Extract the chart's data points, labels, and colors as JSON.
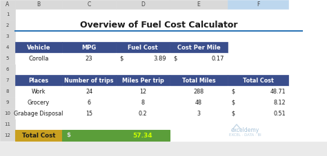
{
  "title": "Overview of Fuel Cost Calculator",
  "bg_color": "#EAEAEA",
  "white": "#FFFFFF",
  "header_blue": "#3A4E8C",
  "header_text": "#FFFFFF",
  "border_dark": "#999999",
  "border_light": "#CCCCCC",
  "col_header_bg": "#D9D9D9",
  "col_F_header_bg": "#BDD7EE",
  "table1_headers": [
    "Vehicle",
    "MPG",
    "Fuel Cost",
    "Cost Per Mile"
  ],
  "table1_data_row": [
    "Corolla",
    "23",
    "3.89",
    "0.17"
  ],
  "table2_headers": [
    "Places",
    "Number of trips",
    "Miles Per trip",
    "Total Miles",
    "Total Cost"
  ],
  "table2_data": [
    [
      "Work",
      "24",
      "12",
      "288",
      "48.71"
    ],
    [
      "Grocery",
      "6",
      "8",
      "48",
      "8.12"
    ],
    [
      "Grabage Disposal",
      "15",
      "0.2",
      "3",
      "0.51"
    ]
  ],
  "total_label": "Total Cost",
  "total_value": "57.34",
  "total_label_bg": "#C9A020",
  "total_dollar_bg": "#5B9E3A",
  "total_value_bg": "#5B9E3A",
  "total_value_color": "#CCFF00",
  "watermark_color": "#AABBCC",
  "row_nums": [
    "1",
    "2",
    "3",
    "4",
    "5",
    "6",
    "7",
    "8",
    "9",
    "10",
    "11",
    "12"
  ],
  "col_labels": [
    "A",
    "B",
    "C",
    "D",
    "E",
    "F"
  ],
  "green_border_color": "#2E8B2E",
  "title_underline_color": "#2E75B6"
}
